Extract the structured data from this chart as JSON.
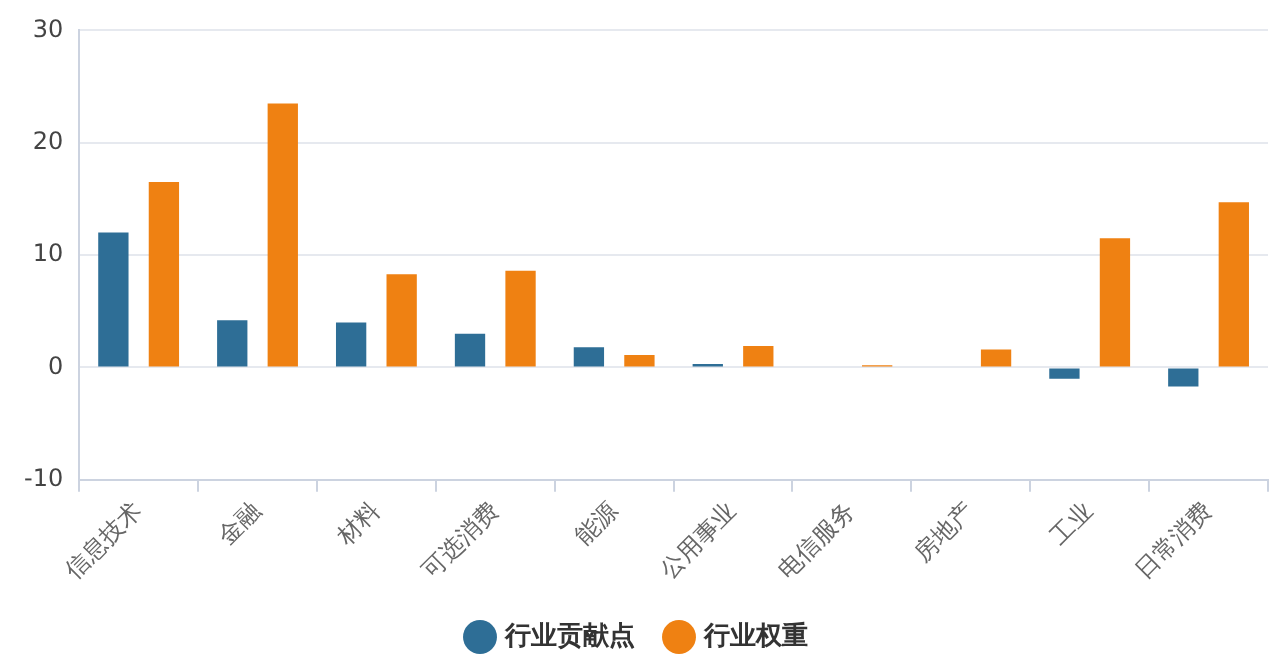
{
  "chart_data": {
    "type": "bar",
    "categories": [
      "信息技术",
      "金融",
      "材料",
      "可选消费",
      "能源",
      "公用事业",
      "电信服务",
      "房地产",
      "工业",
      "日常消费"
    ],
    "series": [
      {
        "name": "行业贡献点",
        "color": "#2e6e96",
        "values": [
          12.0,
          4.2,
          4.0,
          3.0,
          1.8,
          0.3,
          0,
          0,
          -1.0,
          -1.7
        ]
      },
      {
        "name": "行业权重",
        "color": "#ef8112",
        "values": [
          16.5,
          23.5,
          8.3,
          8.6,
          1.1,
          1.9,
          0.2,
          1.6,
          11.5,
          14.7
        ]
      }
    ],
    "ylim": [
      -10,
      30
    ],
    "yticks": [
      -10,
      0,
      10,
      20,
      30
    ],
    "grid": "y",
    "legend": "bottom"
  }
}
